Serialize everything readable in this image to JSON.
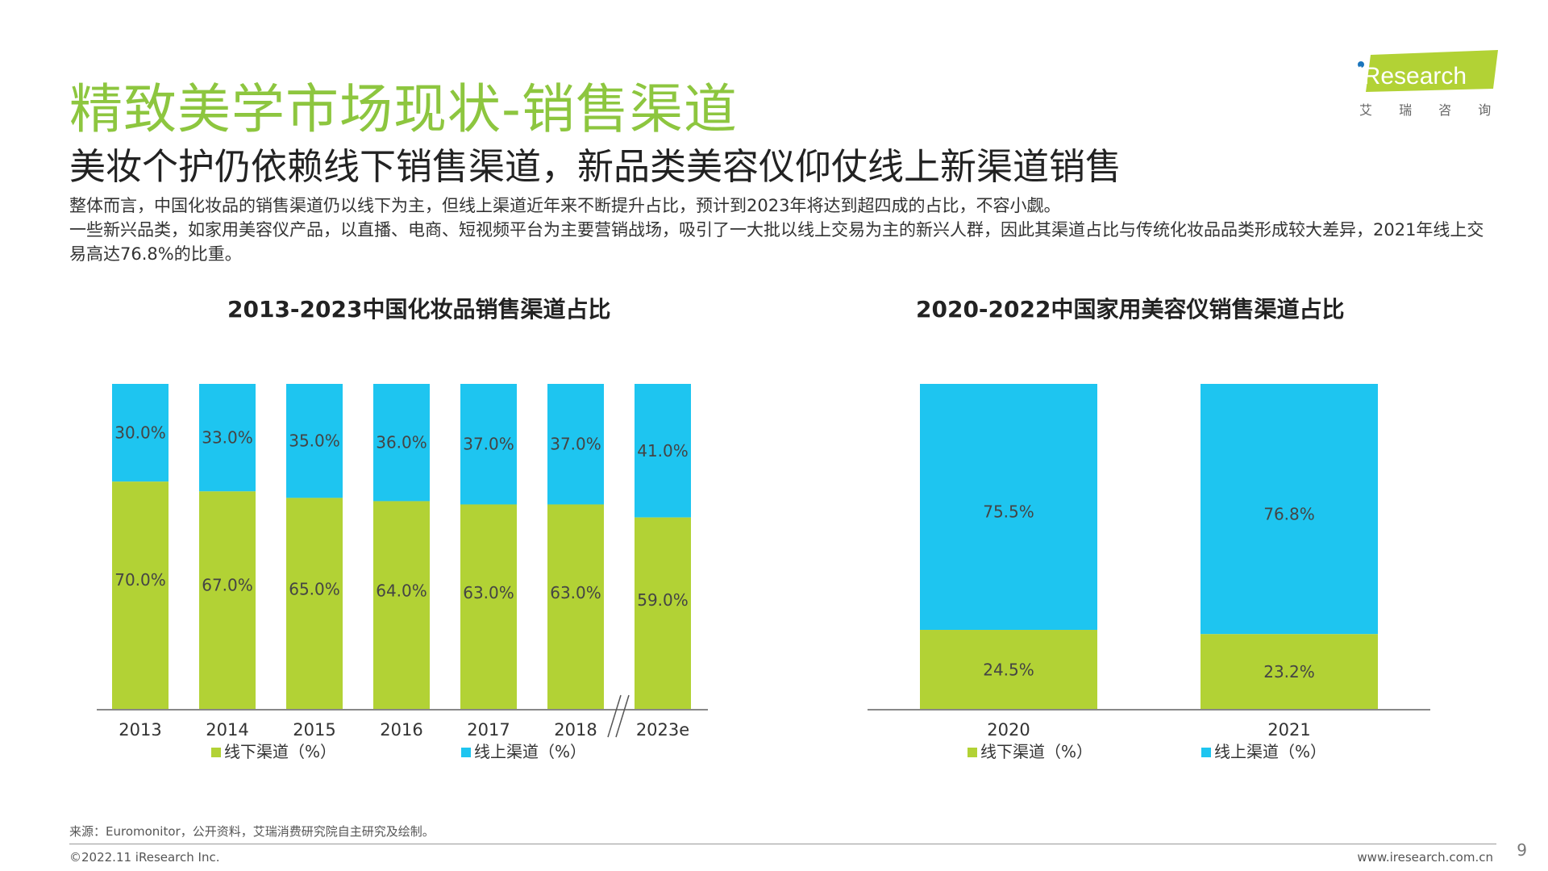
{
  "header": {
    "title": "精致美学市场现状-销售渠道",
    "subtitle": "美妆个护仍依赖线下销售渠道，新品类美容仪仰仗线上新渠道销售",
    "desc_line1": "整体而言，中国化妆品的销售渠道仍以线下为主，但线上渠道近年来不断提升占比，预计到2023年将达到超四成的占比，不容小觑。",
    "desc_line2": "一些新兴品类，如家用美容仪产品，以直播、电商、短视频平台为主要营销战场，吸引了一大批以线上交易为主的新兴人群，因此其渠道占比与传统化妆品品类形成较大差异，2021年线上交易高达76.8%的比重。"
  },
  "logo": {
    "text": "iResearch",
    "cn": "艾 瑞 咨 询"
  },
  "colors": {
    "offline": "#b2d235",
    "online": "#1ec5f0",
    "title": "#8dc63f",
    "axis": "#888888",
    "label": "#444444"
  },
  "chart_data": [
    {
      "type": "bar",
      "stacked": true,
      "title": "2013-2023中国化妆品销售渠道占比",
      "categories": [
        "2013",
        "2014",
        "2015",
        "2016",
        "2017",
        "2018",
        "2023e"
      ],
      "axis_break_between": [
        "2018",
        "2023e"
      ],
      "series": [
        {
          "name": "线下渠道（%）",
          "values": [
            70.0,
            67.0,
            65.0,
            64.0,
            63.0,
            63.0,
            59.0
          ],
          "labels": [
            "70.0%",
            "67.0%",
            "65.0%",
            "64.0%",
            "63.0%",
            "63.0%",
            "59.0%"
          ]
        },
        {
          "name": "线上渠道（%）",
          "values": [
            30.0,
            33.0,
            35.0,
            36.0,
            37.0,
            37.0,
            41.0
          ],
          "labels": [
            "30.0%",
            "33.0%",
            "35.0%",
            "36.0%",
            "37.0%",
            "37.0%",
            "41.0%"
          ]
        }
      ],
      "ylim": [
        0,
        100
      ],
      "legend": "bottom"
    },
    {
      "type": "bar",
      "stacked": true,
      "title": "2020-2022中国家用美容仪销售渠道占比",
      "categories": [
        "2020",
        "2021"
      ],
      "series": [
        {
          "name": "线下渠道（%）",
          "values": [
            24.5,
            23.2
          ],
          "labels": [
            "24.5%",
            "23.2%"
          ]
        },
        {
          "name": "线上渠道（%）",
          "values": [
            75.5,
            76.8
          ],
          "labels": [
            "75.5%",
            "76.8%"
          ]
        }
      ],
      "ylim": [
        0,
        100
      ],
      "legend": "bottom"
    }
  ],
  "footer": {
    "source": "来源：Euromonitor，公开资料，艾瑞消费研究院自主研究及绘制。",
    "copyright": "©2022.11 iResearch Inc.",
    "site": "www.iresearch.com.cn",
    "page": "9"
  }
}
